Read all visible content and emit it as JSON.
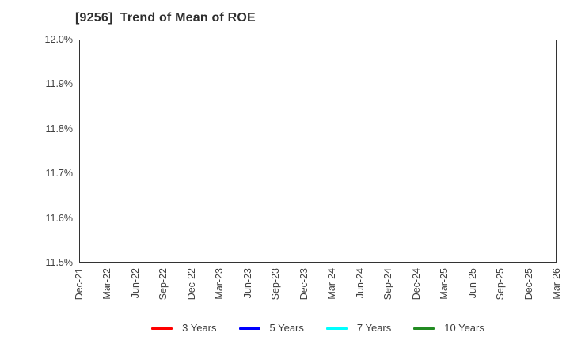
{
  "chart_data": {
    "type": "line",
    "title": "[9256]  Trend of Mean of ROE",
    "xlabel": "",
    "ylabel": "",
    "x_tick_labels": [
      "Dec-21",
      "Mar-22",
      "Jun-22",
      "Sep-22",
      "Dec-22",
      "Mar-23",
      "Jun-23",
      "Sep-23",
      "Dec-23",
      "Mar-24",
      "Jun-24",
      "Sep-24",
      "Dec-24",
      "Mar-25",
      "Jun-25",
      "Sep-25",
      "Dec-25",
      "Mar-26"
    ],
    "x_months_total": 51,
    "x_label_every_months": 3,
    "y_tick_labels": [
      "11.5%",
      "11.6%",
      "11.7%",
      "11.8%",
      "11.9%",
      "12.0%"
    ],
    "ylim": [
      11.5,
      12.0
    ],
    "grid": {
      "vertical": "dotted, one line per month",
      "horizontal": "dashed, one line per 0.1% tick"
    },
    "legend": {
      "position": "bottom-center",
      "entries": [
        {
          "label": "3 Years",
          "color": "#ff0000"
        },
        {
          "label": "5 Years",
          "color": "#0000ff"
        },
        {
          "label": "7 Years",
          "color": "#00ffff"
        },
        {
          "label": "10 Years",
          "color": "#228b22"
        }
      ]
    },
    "series": [
      {
        "name": "3 Years",
        "color": "#ff0000",
        "values": []
      },
      {
        "name": "5 Years",
        "color": "#0000ff",
        "values": []
      },
      {
        "name": "7 Years",
        "color": "#00ffff",
        "values": []
      },
      {
        "name": "10 Years",
        "color": "#228b22",
        "values": []
      }
    ]
  },
  "colors": {
    "background": "#ffffff",
    "plot_border": "#333333",
    "gridline": "#a8a8a8",
    "tick_text": "#404040",
    "title_text": "#2e2e2e"
  }
}
